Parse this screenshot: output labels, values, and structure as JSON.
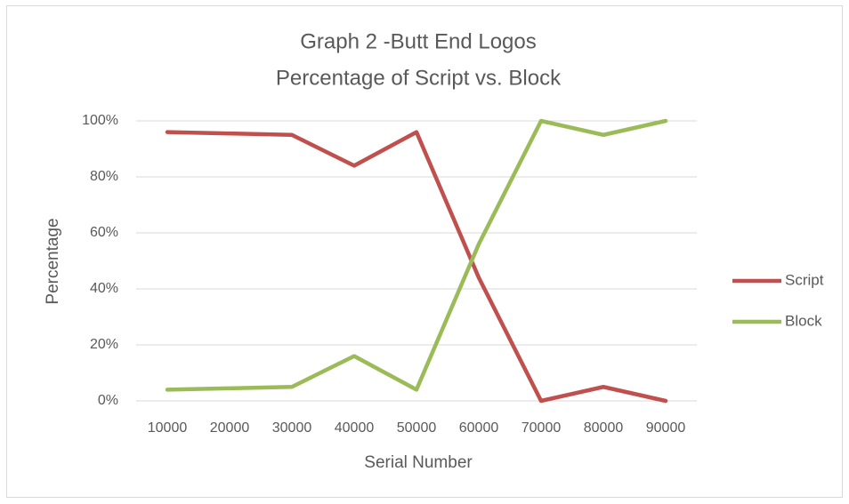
{
  "chart_data": {
    "type": "line",
    "title": [
      "Graph 2 -Butt End Logos",
      "Percentage of Script vs. Block"
    ],
    "x_label": "Serial Number",
    "y_label": "Percentage",
    "categories": [
      "10000",
      "20000",
      "30000",
      "40000",
      "50000",
      "60000",
      "70000",
      "80000",
      "90000"
    ],
    "series": [
      {
        "name": "Script",
        "color": "#c0504d",
        "values": [
          96,
          95.5,
          95,
          84,
          96,
          44,
          0,
          5,
          0
        ]
      },
      {
        "name": "Block",
        "color": "#9bbb59",
        "values": [
          4,
          4.5,
          5,
          16,
          4,
          56,
          100,
          95,
          100
        ]
      }
    ],
    "ylim": [
      0,
      100
    ],
    "yticks": [
      {
        "value": 0,
        "label": "0%"
      },
      {
        "value": 20,
        "label": "20%"
      },
      {
        "value": 40,
        "label": "40%"
      },
      {
        "value": 60,
        "label": "60%"
      },
      {
        "value": 80,
        "label": "80%"
      },
      {
        "value": 100,
        "label": "100%"
      }
    ],
    "grid": true,
    "legend": "right"
  }
}
